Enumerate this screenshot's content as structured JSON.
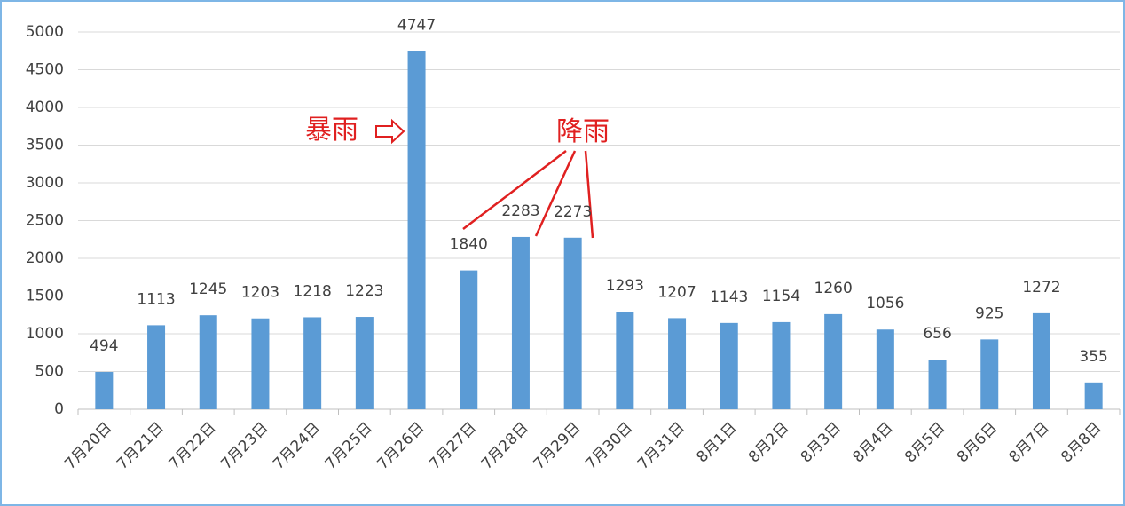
{
  "chart_data": {
    "type": "bar",
    "categories": [
      "7月20日",
      "7月21日",
      "7月22日",
      "7月23日",
      "7月24日",
      "7月25日",
      "7月26日",
      "7月27日",
      "7月28日",
      "7月29日",
      "7月30日",
      "7月31日",
      "8月1日",
      "8月2日",
      "8月3日",
      "8月4日",
      "8月5日",
      "8月6日",
      "8月7日",
      "8月8日"
    ],
    "values": [
      494,
      1113,
      1245,
      1203,
      1218,
      1223,
      4747,
      1840,
      2283,
      2273,
      1293,
      1207,
      1143,
      1154,
      1260,
      1056,
      656,
      925,
      1272,
      355
    ],
    "color": "#5b9bd5",
    "ylim": [
      0,
      5000
    ],
    "yticks": [
      0,
      500,
      1000,
      1500,
      2000,
      2500,
      3000,
      3500,
      4000,
      4500,
      5000
    ],
    "grid": true,
    "annotations": [
      "暴雨",
      "降雨"
    ]
  }
}
